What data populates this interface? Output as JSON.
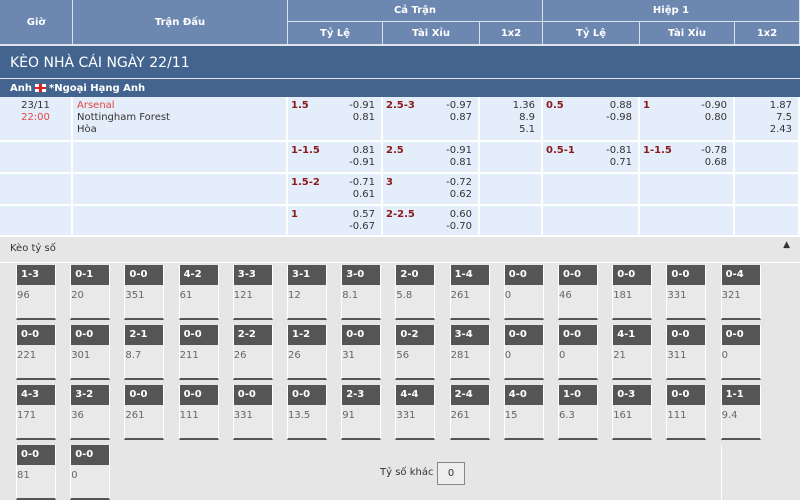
{
  "header": {
    "gio": "Giờ",
    "tran_dau": "Trận Đấu",
    "ca_tran": "Cả Trận",
    "hiep1": "Hiệp 1",
    "ty_le": "Tỷ Lệ",
    "tai_xiu": "Tài Xỉu",
    "x12": "1x2"
  },
  "title": "KÈO NHÀ CÁI NGÀY 22/11",
  "league": {
    "country": "Anh",
    "name": "*Ngoại Hạng Anh"
  },
  "match": {
    "date": "23/11",
    "time": "22:00",
    "home": "Arsenal",
    "away": "Nottingham Forest",
    "draw": "Hòa"
  },
  "rows": [
    {
      "ft_hdp": "1.5",
      "ft_hdp_o": [
        "-0.91",
        "0.81"
      ],
      "ft_ou": "2.5-3",
      "ft_ou_o": [
        "-0.97",
        "0.87"
      ],
      "ft_1x2": [
        "1.36",
        "8.9",
        "5.1"
      ],
      "h1_hdp": "0.5",
      "h1_hdp_o": [
        "0.88",
        "-0.98"
      ],
      "h1_ou": "1",
      "h1_ou_o": [
        "-0.90",
        "0.80"
      ],
      "h1_1x2": [
        "1.87",
        "7.5",
        "2.43"
      ]
    },
    {
      "ft_hdp": "1-1.5",
      "ft_hdp_o": [
        "0.81",
        "-0.91"
      ],
      "ft_ou": "2.5",
      "ft_ou_o": [
        "-0.91",
        "0.81"
      ],
      "ft_1x2": [],
      "h1_hdp": "0.5-1",
      "h1_hdp_o": [
        "-0.81",
        "0.71"
      ],
      "h1_ou": "1-1.5",
      "h1_ou_o": [
        "-0.78",
        "0.68"
      ],
      "h1_1x2": []
    },
    {
      "ft_hdp": "1.5-2",
      "ft_hdp_o": [
        "-0.71",
        "0.61"
      ],
      "ft_ou": "3",
      "ft_ou_o": [
        "-0.72",
        "0.62"
      ],
      "ft_1x2": [],
      "h1_hdp": "",
      "h1_hdp_o": [],
      "h1_ou": "",
      "h1_ou_o": [],
      "h1_1x2": []
    },
    {
      "ft_hdp": "1",
      "ft_hdp_o": [
        "0.57",
        "-0.67"
      ],
      "ft_ou": "2-2.5",
      "ft_ou_o": [
        "0.60",
        "-0.70"
      ],
      "ft_1x2": [],
      "h1_hdp": "",
      "h1_hdp_o": [],
      "h1_ou": "",
      "h1_ou_o": [],
      "h1_1x2": []
    }
  ],
  "correct_score": {
    "label": "Kèo tỷ số",
    "collapse_icon": "triangle-up-icon",
    "other_label": "Tỷ số khác",
    "other_value": "0",
    "items": [
      [
        "1-3",
        "96"
      ],
      [
        "0-1",
        "20"
      ],
      [
        "0-0",
        "351"
      ],
      [
        "4-2",
        "61"
      ],
      [
        "3-3",
        "121"
      ],
      [
        "3-1",
        "12"
      ],
      [
        "3-0",
        "8.1"
      ],
      [
        "2-0",
        "5.8"
      ],
      [
        "1-4",
        "261"
      ],
      [
        "0-0",
        "0"
      ],
      [
        "0-0",
        "46"
      ],
      [
        "0-0",
        "181"
      ],
      [
        "0-0",
        "331"
      ],
      [
        "0-4",
        "321"
      ],
      [
        "0-0",
        "221"
      ],
      [
        "0-0",
        "301"
      ],
      [
        "2-1",
        "8.7"
      ],
      [
        "0-0",
        "211"
      ],
      [
        "2-2",
        "26"
      ],
      [
        "1-2",
        "26"
      ],
      [
        "0-0",
        "31"
      ],
      [
        "0-2",
        "56"
      ],
      [
        "3-4",
        "281"
      ],
      [
        "0-0",
        "0"
      ],
      [
        "0-0",
        "0"
      ],
      [
        "4-1",
        "21"
      ],
      [
        "0-0",
        "311"
      ],
      [
        "0-0",
        "0"
      ],
      [
        "4-3",
        "171"
      ],
      [
        "3-2",
        "36"
      ],
      [
        "0-0",
        "261"
      ],
      [
        "0-0",
        "111"
      ],
      [
        "0-0",
        "331"
      ],
      [
        "0-0",
        "13.5"
      ],
      [
        "2-3",
        "91"
      ],
      [
        "4-4",
        "331"
      ],
      [
        "2-4",
        "261"
      ],
      [
        "4-0",
        "15"
      ],
      [
        "1-0",
        "6.3"
      ],
      [
        "0-3",
        "161"
      ],
      [
        "0-0",
        "111"
      ],
      [
        "1-1",
        "9.4"
      ],
      [
        "0-0",
        "81"
      ],
      [
        "0-0",
        "0"
      ]
    ]
  }
}
